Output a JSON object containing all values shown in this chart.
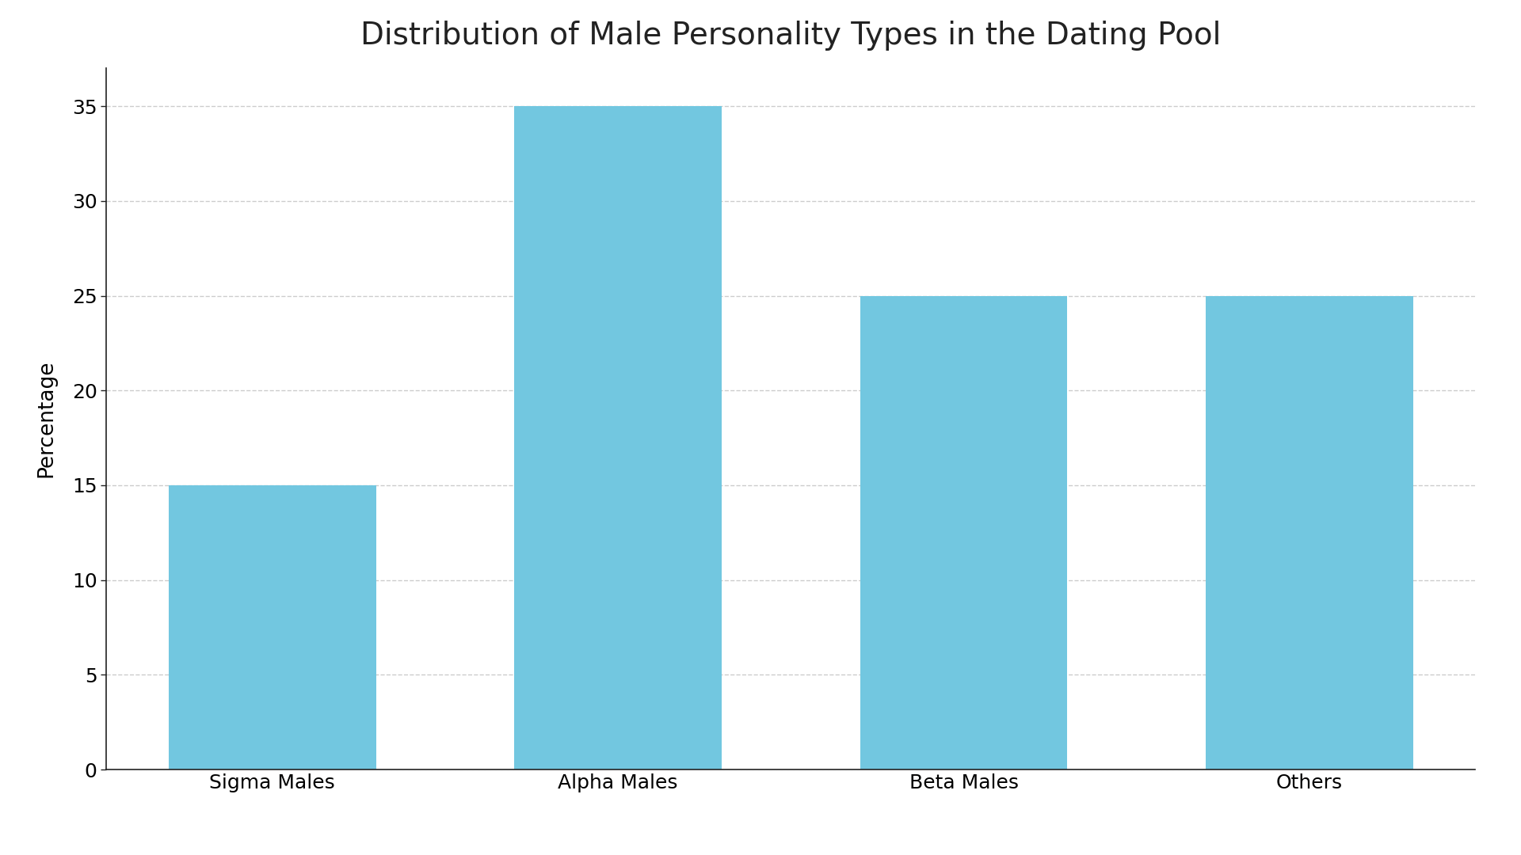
{
  "title": "Distribution of Male Personality Types in the Dating Pool",
  "categories": [
    "Sigma Males",
    "Alpha Males",
    "Beta Males",
    "Others"
  ],
  "values": [
    15,
    35,
    25,
    25
  ],
  "bar_color": "#72c7e0",
  "ylabel": "Percentage",
  "ylim": [
    0,
    37
  ],
  "yticks": [
    0,
    5,
    10,
    15,
    20,
    25,
    30,
    35
  ],
  "title_fontsize": 28,
  "label_fontsize": 19,
  "tick_fontsize": 18,
  "background_color": "#ffffff",
  "grid_color": "#cccccc",
  "spine_color": "#222222",
  "bar_width": 0.6
}
